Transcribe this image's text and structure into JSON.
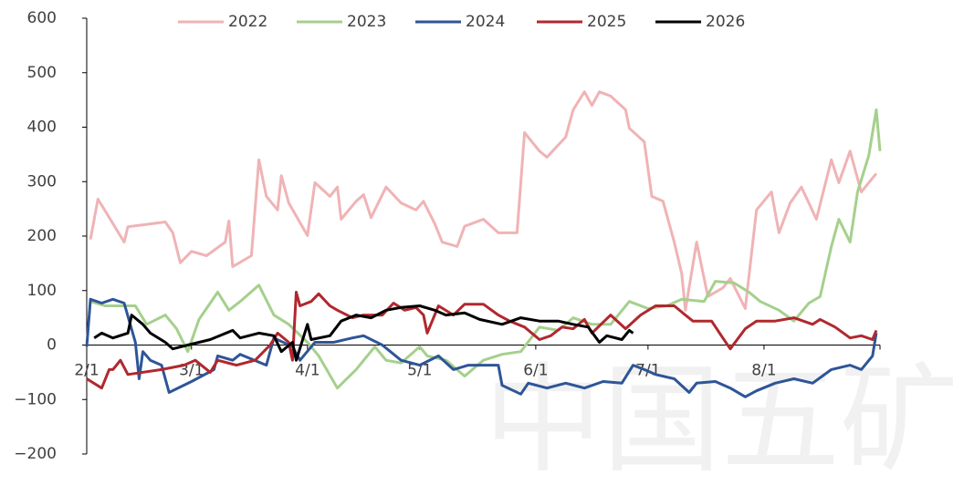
{
  "chart_data": {
    "type": "line",
    "watermark": "中国五矿",
    "xlim": [
      0,
      212
    ],
    "xticks": [
      {
        "value": 0,
        "label": "2/1"
      },
      {
        "value": 28,
        "label": "3/1"
      },
      {
        "value": 59,
        "label": "4/1"
      },
      {
        "value": 89,
        "label": "5/1"
      },
      {
        "value": 120,
        "label": "6/1"
      },
      {
        "value": 150,
        "label": "7/1"
      },
      {
        "value": 181,
        "label": "8/1"
      },
      212
    ],
    "ylim": [
      -200,
      600
    ],
    "yticks": [
      {
        "value": -200,
        "label": "−200"
      },
      {
        "value": -100,
        "label": "−100"
      },
      0,
      100,
      200,
      300,
      400,
      500,
      600
    ],
    "legend": "top",
    "series": [
      {
        "name": "2022",
        "color": "#f0b3b5",
        "x": [
          1,
          3,
          7,
          10,
          11,
          21,
          23,
          25,
          28,
          32,
          37,
          38,
          39,
          44,
          46,
          48,
          51,
          52,
          54,
          59,
          61,
          65,
          67,
          68,
          72,
          74,
          76,
          80,
          84,
          88,
          90,
          93,
          95,
          99,
          101,
          106,
          110,
          115,
          117,
          121,
          123,
          128,
          130,
          133,
          135,
          137,
          140,
          144,
          145,
          149,
          151,
          154,
          157,
          159,
          160,
          163,
          166,
          170,
          172,
          176,
          179,
          183,
          185,
          188,
          191,
          195,
          199,
          201,
          204,
          207,
          211
        ],
        "values": [
          194,
          268,
          223,
          189,
          217,
          226,
          206,
          151,
          172,
          164,
          189,
          228,
          144,
          164,
          340,
          273,
          248,
          311,
          261,
          201,
          298,
          273,
          290,
          231,
          264,
          276,
          234,
          290,
          261,
          248,
          264,
          223,
          189,
          181,
          218,
          231,
          206,
          206,
          390,
          356,
          345,
          382,
          432,
          465,
          440,
          465,
          457,
          432,
          398,
          373,
          273,
          264,
          189,
          131,
          64,
          189,
          89,
          105,
          122,
          67,
          248,
          281,
          206,
          261,
          290,
          231,
          340,
          298,
          356,
          281,
          315
        ]
      },
      {
        "name": "2023",
        "color": "#a5d08c",
        "x": [
          1,
          5,
          13,
          16,
          21,
          24,
          27,
          30,
          35,
          38,
          41,
          46,
          50,
          54,
          59,
          62,
          67,
          72,
          77,
          80,
          84,
          89,
          91,
          96,
          101,
          106,
          111,
          116,
          121,
          126,
          130,
          135,
          140,
          145,
          150,
          155,
          159,
          165,
          168,
          173,
          177,
          180,
          185,
          189,
          193,
          196,
          199,
          201,
          204,
          206,
          209,
          211,
          212
        ],
        "values": [
          80,
          72,
          72,
          38,
          55,
          30,
          -12,
          47,
          97,
          64,
          80,
          110,
          55,
          38,
          5,
          -20,
          -79,
          -45,
          -3,
          -28,
          -33,
          -3,
          -20,
          -28,
          -57,
          -28,
          -17,
          -12,
          33,
          27,
          50,
          38,
          38,
          80,
          67,
          72,
          84,
          80,
          117,
          114,
          97,
          80,
          64,
          44,
          77,
          89,
          181,
          231,
          189,
          281,
          348,
          432,
          356
        ]
      },
      {
        "name": "2024",
        "color": "#2e5597",
        "x": [
          0,
          1,
          4,
          7,
          10,
          13,
          14,
          15,
          17,
          20,
          22,
          28,
          34,
          35,
          39,
          41,
          48,
          50,
          55,
          57,
          61,
          66,
          71,
          74,
          79,
          84,
          89,
          94,
          98,
          102,
          110,
          111,
          116,
          118,
          123,
          128,
          133,
          138,
          143,
          146,
          149,
          152,
          157,
          161,
          163,
          168,
          172,
          176,
          179,
          184,
          189,
          194,
          199,
          204,
          207,
          210,
          211
        ],
        "values": [
          -3,
          84,
          77,
          84,
          77,
          5,
          -62,
          -12,
          -28,
          -37,
          -87,
          -67,
          -45,
          -20,
          -28,
          -17,
          -37,
          13,
          -3,
          -28,
          5,
          5,
          13,
          17,
          0,
          -28,
          -37,
          -20,
          -45,
          -37,
          -37,
          -74,
          -90,
          -70,
          -79,
          -70,
          -79,
          -67,
          -70,
          -37,
          -45,
          -54,
          -62,
          -87,
          -70,
          -67,
          -79,
          -95,
          -84,
          -70,
          -62,
          -70,
          -45,
          -37,
          -45,
          -20,
          22
        ]
      },
      {
        "name": "2025",
        "color": "#b0282e",
        "x": [
          0,
          4,
          6,
          7,
          9,
          11,
          20,
          26,
          29,
          33,
          35,
          40,
          45,
          49,
          51,
          54,
          55,
          56,
          57,
          60,
          62,
          65,
          67,
          71,
          74,
          79,
          82,
          85,
          88,
          90,
          91,
          94,
          98,
          101,
          106,
          110,
          113,
          117,
          121,
          124,
          127,
          130,
          133,
          135,
          140,
          144,
          148,
          152,
          157,
          160,
          162,
          167,
          170,
          172,
          176,
          179,
          184,
          189,
          194,
          196,
          200,
          204,
          207,
          210,
          211
        ],
        "values": [
          -62,
          -79,
          -45,
          -45,
          -28,
          -54,
          -45,
          -37,
          -28,
          -50,
          -28,
          -37,
          -28,
          0,
          22,
          5,
          -28,
          97,
          72,
          80,
          94,
          72,
          64,
          50,
          55,
          55,
          77,
          64,
          69,
          55,
          22,
          72,
          55,
          75,
          75,
          55,
          44,
          33,
          10,
          17,
          33,
          30,
          47,
          22,
          55,
          30,
          55,
          72,
          72,
          55,
          44,
          44,
          13,
          -7,
          30,
          44,
          44,
          50,
          38,
          47,
          33,
          13,
          17,
          10,
          27
        ]
      },
      {
        "name": "2026",
        "color": "#000000",
        "x": [
          2,
          4,
          7,
          11,
          12,
          15,
          17,
          21,
          23,
          27,
          33,
          39,
          41,
          46,
          50,
          52,
          55,
          56,
          59,
          60,
          65,
          68,
          72,
          76,
          80,
          84,
          89,
          93,
          96,
          101,
          105,
          111,
          116,
          121,
          126,
          130,
          134,
          137,
          139,
          143,
          145,
          146
        ],
        "values": [
          13,
          22,
          13,
          22,
          55,
          38,
          22,
          5,
          -7,
          0,
          10,
          27,
          13,
          22,
          17,
          -12,
          5,
          -28,
          38,
          10,
          17,
          44,
          55,
          50,
          64,
          69,
          72,
          64,
          55,
          59,
          47,
          38,
          50,
          44,
          44,
          38,
          33,
          5,
          17,
          10,
          27,
          22
        ]
      }
    ]
  }
}
